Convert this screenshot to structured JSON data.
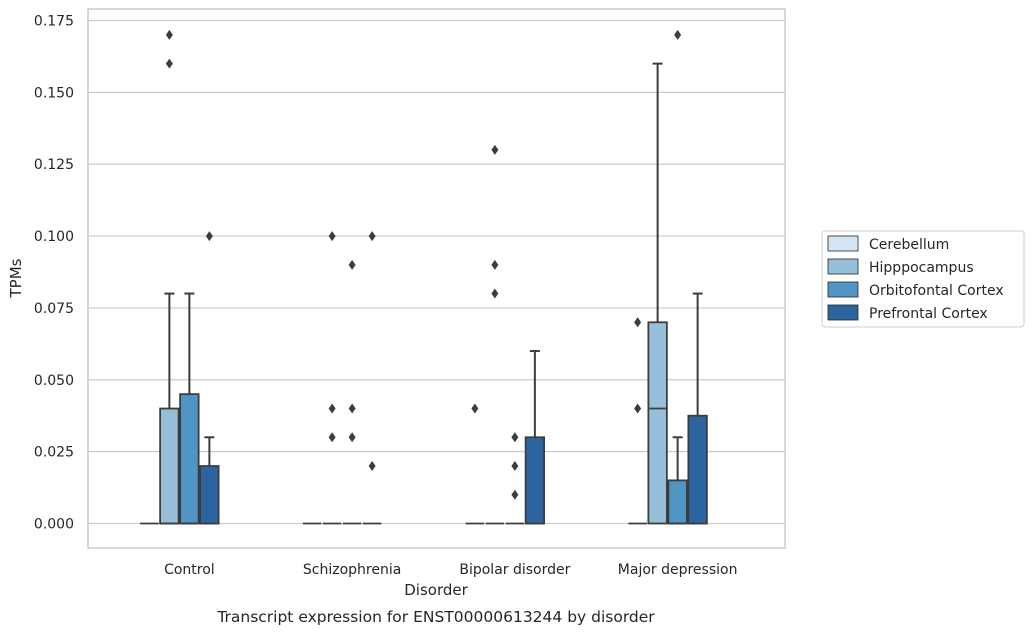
{
  "chart_data": {
    "type": "box",
    "title": "",
    "caption": "Transcript expression for ENST00000613244 by disorder",
    "xlabel": "Disorder",
    "ylabel": "TPMs",
    "ylim": [
      -0.0085,
      0.1785
    ],
    "yticks": [
      "0.000",
      "0.025",
      "0.050",
      "0.075",
      "0.100",
      "0.125",
      "0.150",
      "0.175"
    ],
    "yticks_values": [
      0,
      0.025,
      0.05,
      0.075,
      0.1,
      0.125,
      0.15,
      0.175
    ],
    "grid": "horizontal",
    "legend_position": "right",
    "categories": [
      "Control",
      "Schizophrenia",
      "Bipolar disorder",
      "Major depression"
    ],
    "series": [
      {
        "name": "Cerebellum",
        "color": "#d5e4f2",
        "boxes": [
          {
            "q1": 0,
            "median": 0,
            "q3": 0,
            "whisker_low": 0,
            "whisker_high": 0,
            "outliers": []
          },
          {
            "q1": 0,
            "median": 0,
            "q3": 0,
            "whisker_low": 0,
            "whisker_high": 0,
            "outliers": []
          },
          {
            "q1": 0,
            "median": 0,
            "q3": 0,
            "whisker_low": 0,
            "whisker_high": 0,
            "outliers": [
              0.04
            ]
          },
          {
            "q1": 0,
            "median": 0,
            "q3": 0,
            "whisker_low": 0,
            "whisker_high": 0,
            "outliers": [
              0.07,
              0.04
            ]
          }
        ]
      },
      {
        "name": "Hipppocampus",
        "color": "#98bfda",
        "boxes": [
          {
            "q1": 0,
            "median": 0,
            "q3": 0.04,
            "whisker_low": 0,
            "whisker_high": 0.08,
            "outliers": [
              0.17,
              0.16
            ]
          },
          {
            "q1": 0,
            "median": 0,
            "q3": 0,
            "whisker_low": 0,
            "whisker_high": 0,
            "outliers": [
              0.1,
              0.04,
              0.03
            ]
          },
          {
            "q1": 0,
            "median": 0,
            "q3": 0,
            "whisker_low": 0,
            "whisker_high": 0,
            "outliers": [
              0.13,
              0.09,
              0.08
            ]
          },
          {
            "q1": 0,
            "median": 0.04,
            "q3": 0.07,
            "whisker_low": 0,
            "whisker_high": 0.16,
            "outliers": []
          }
        ]
      },
      {
        "name": "Orbitofontal Cortex",
        "color": "#5195c4",
        "boxes": [
          {
            "q1": 0,
            "median": 0,
            "q3": 0.045,
            "whisker_low": 0,
            "whisker_high": 0.08,
            "outliers": []
          },
          {
            "q1": 0,
            "median": 0,
            "q3": 0,
            "whisker_low": 0,
            "whisker_high": 0,
            "outliers": [
              0.09,
              0.04,
              0.03
            ]
          },
          {
            "q1": 0,
            "median": 0,
            "q3": 0,
            "whisker_low": 0,
            "whisker_high": 0,
            "outliers": [
              0.03,
              0.02,
              0.01
            ]
          },
          {
            "q1": 0,
            "median": 0,
            "q3": 0.015,
            "whisker_low": 0,
            "whisker_high": 0.03,
            "outliers": [
              0.17
            ]
          }
        ]
      },
      {
        "name": "Prefrontal Cortex",
        "color": "#2c64a0",
        "boxes": [
          {
            "q1": 0,
            "median": 0,
            "q3": 0.02,
            "whisker_low": 0,
            "whisker_high": 0.03,
            "outliers": [
              0.1
            ]
          },
          {
            "q1": 0,
            "median": 0,
            "q3": 0,
            "whisker_low": 0,
            "whisker_high": 0,
            "outliers": [
              0.1,
              0.02
            ]
          },
          {
            "q1": 0,
            "median": 0,
            "q3": 0.03,
            "whisker_low": 0,
            "whisker_high": 0.06,
            "outliers": []
          },
          {
            "q1": 0,
            "median": 0,
            "q3": 0.0375,
            "whisker_low": 0,
            "whisker_high": 0.08,
            "outliers": []
          }
        ]
      }
    ]
  },
  "colors": {
    "grid": "#cccccc",
    "frame": "#cccccc",
    "stroke": "#3d3d3d",
    "text": "#262626"
  }
}
